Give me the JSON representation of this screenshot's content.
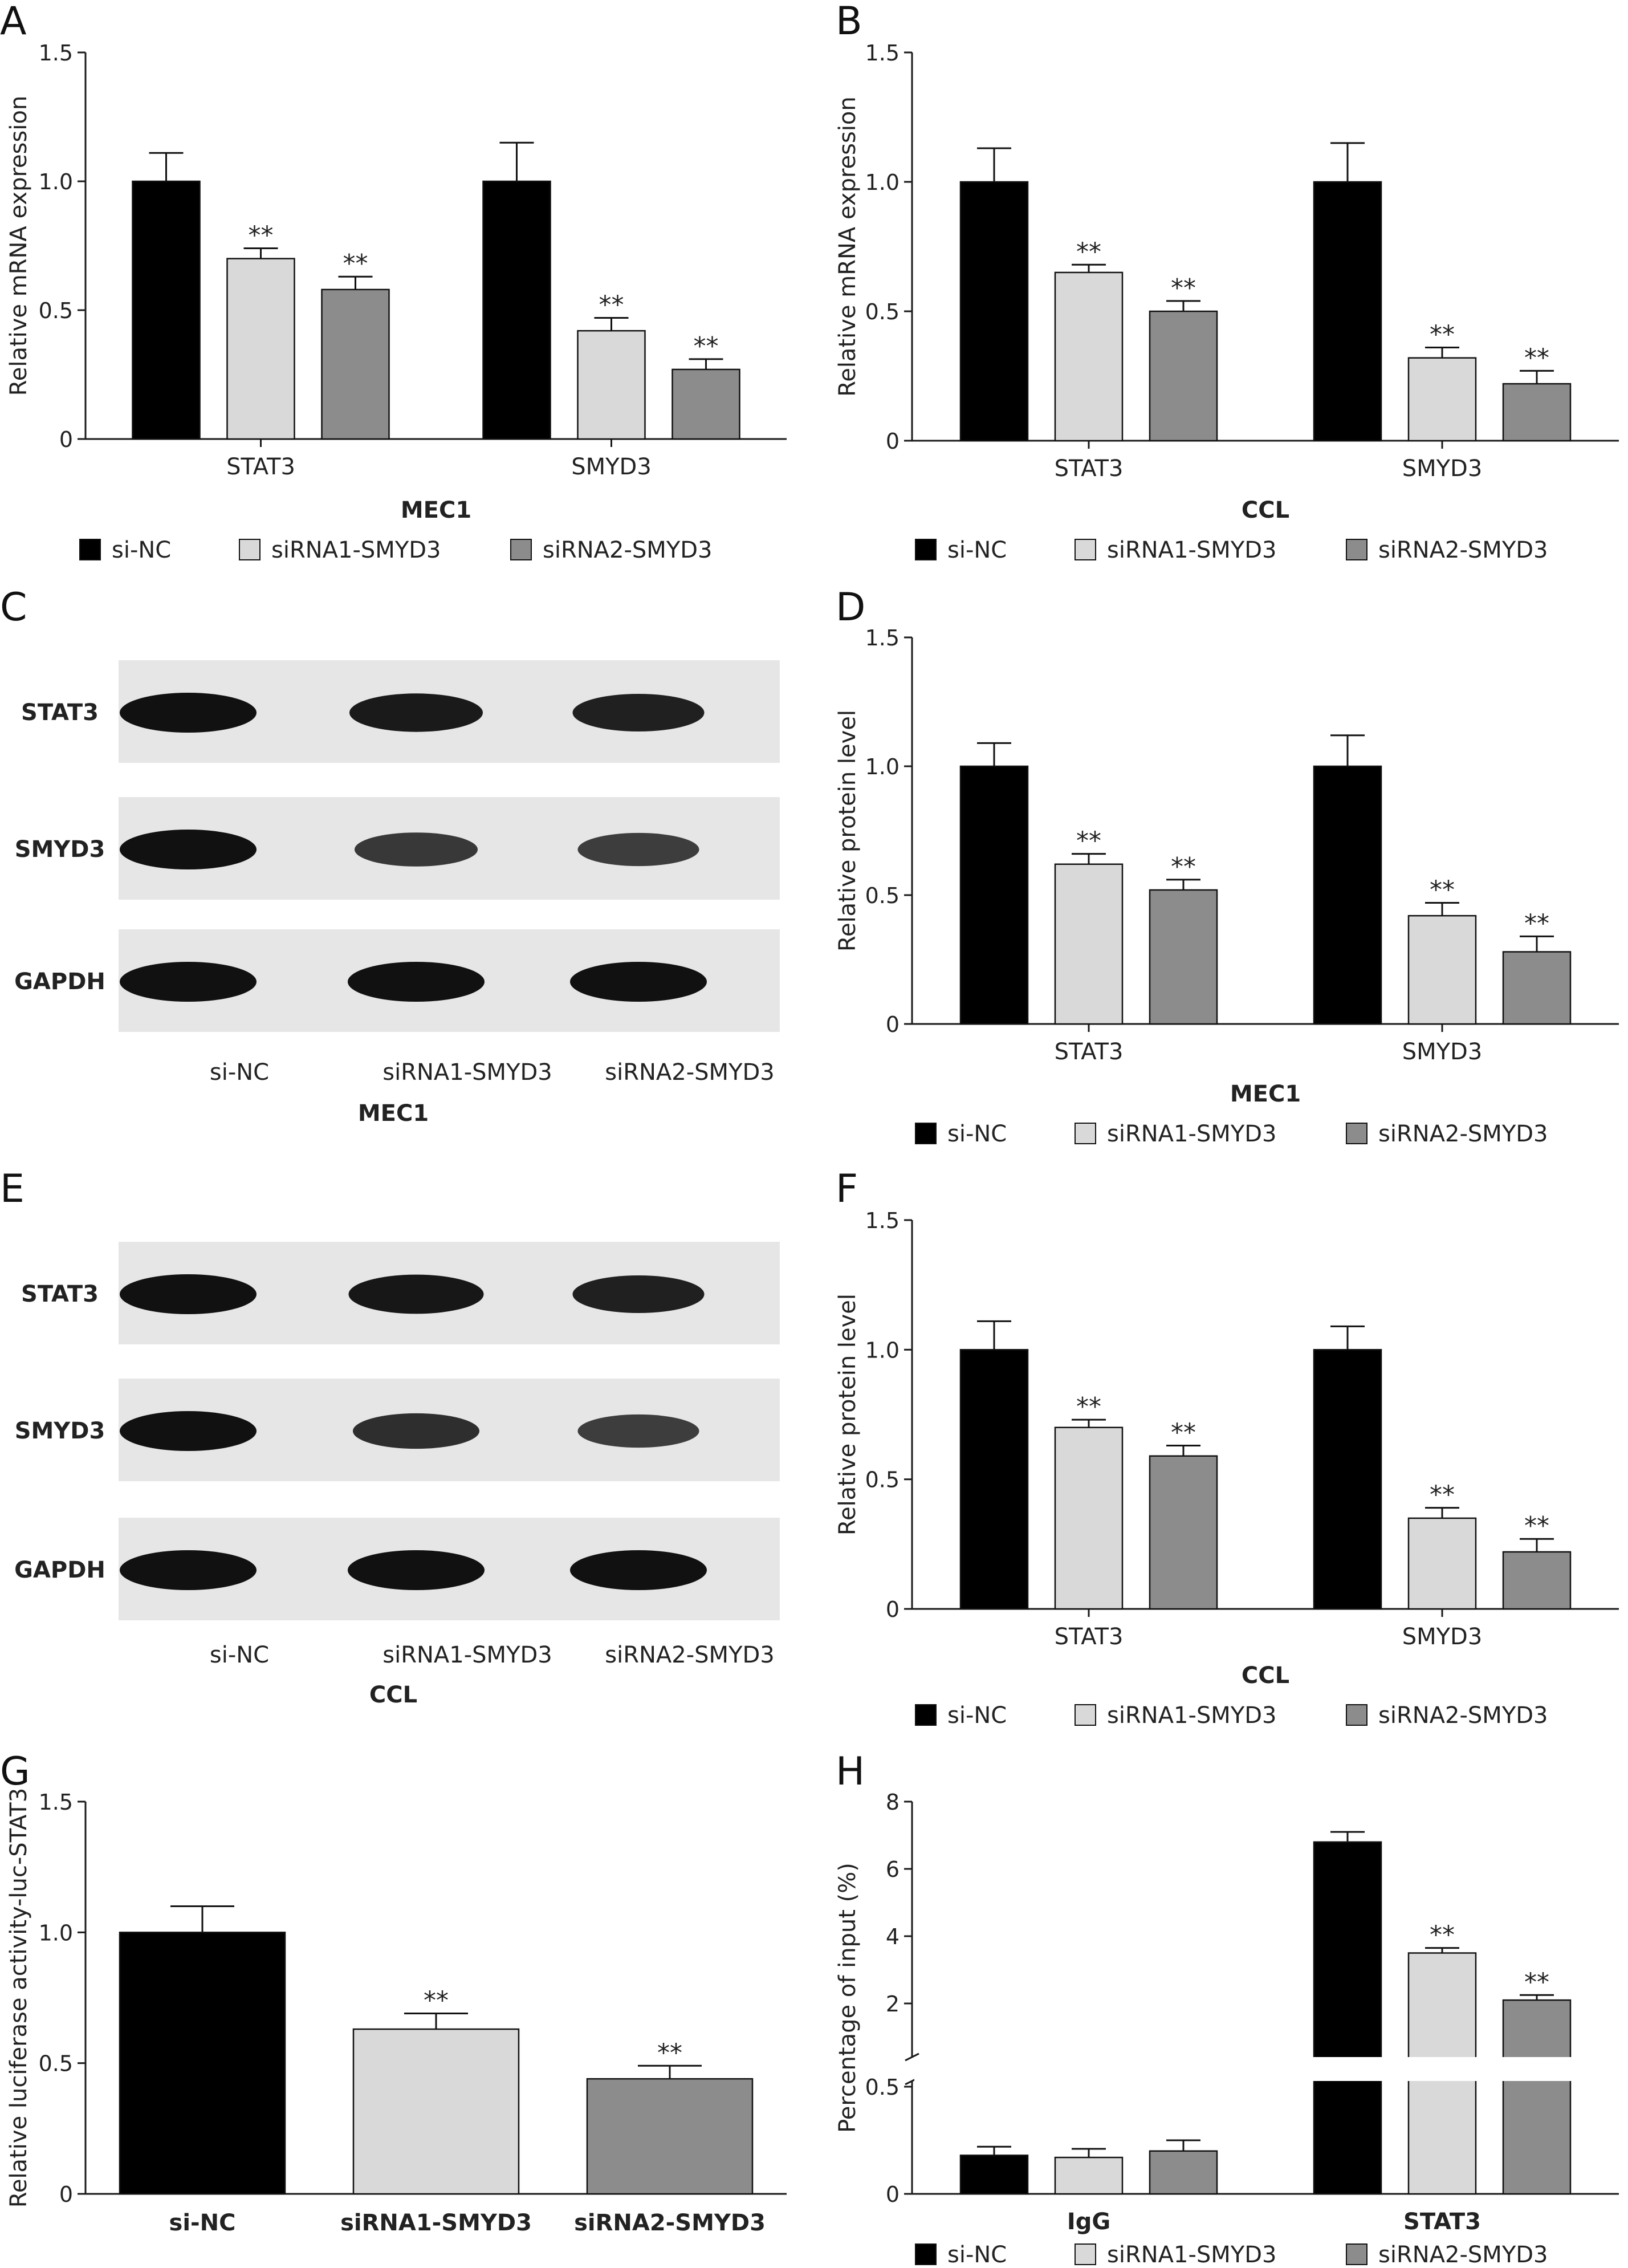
{
  "colors": {
    "si_nc": "#000000",
    "sirna1": "#d9d9d9",
    "sirna2": "#8c8c8c",
    "axis": "#1a1a1a",
    "star": "#000000"
  },
  "legend_labels": [
    "si-NC",
    "siRNA1-SMYD3",
    "siRNA2-SMYD3"
  ],
  "significance_marker": "**",
  "chart_data": [
    {
      "panel": "A",
      "type": "bar",
      "ylabel": "Relative mRNA expression",
      "xlabel": "MEC1",
      "categories": [
        "STAT3",
        "SMYD3"
      ],
      "ylim": [
        0,
        1.5
      ],
      "yticks": [
        0,
        0.5,
        1.0,
        1.5
      ],
      "ytick_labels": [
        "0",
        "0.5",
        "1.0",
        "1.5"
      ],
      "series": [
        {
          "name": "si-NC",
          "values": [
            1.0,
            1.0
          ],
          "errors": [
            0.11,
            0.15
          ],
          "sig": [
            false,
            false
          ]
        },
        {
          "name": "siRNA1-SMYD3",
          "values": [
            0.7,
            0.42
          ],
          "errors": [
            0.04,
            0.05
          ],
          "sig": [
            true,
            true
          ]
        },
        {
          "name": "siRNA2-SMYD3",
          "values": [
            0.58,
            0.27
          ],
          "errors": [
            0.05,
            0.04
          ],
          "sig": [
            true,
            true
          ]
        }
      ],
      "legend": [
        "si-NC",
        "siRNA1-SMYD3",
        "siRNA2-SMYD3"
      ]
    },
    {
      "panel": "B",
      "type": "bar",
      "ylabel": "Relative mRNA expression",
      "xlabel": "CCL",
      "categories": [
        "STAT3",
        "SMYD3"
      ],
      "ylim": [
        0,
        1.5
      ],
      "yticks": [
        0,
        0.5,
        1.0,
        1.5
      ],
      "ytick_labels": [
        "0",
        "0.5",
        "1.0",
        "1.5"
      ],
      "series": [
        {
          "name": "si-NC",
          "values": [
            1.0,
            1.0
          ],
          "errors": [
            0.13,
            0.15
          ],
          "sig": [
            false,
            false
          ]
        },
        {
          "name": "siRNA1-SMYD3",
          "values": [
            0.65,
            0.32
          ],
          "errors": [
            0.03,
            0.04
          ],
          "sig": [
            true,
            true
          ]
        },
        {
          "name": "siRNA2-SMYD3",
          "values": [
            0.5,
            0.22
          ],
          "errors": [
            0.04,
            0.05
          ],
          "sig": [
            true,
            true
          ]
        }
      ],
      "legend": [
        "si-NC",
        "siRNA1-SMYD3",
        "siRNA2-SMYD3"
      ]
    },
    {
      "panel": "D",
      "type": "bar",
      "ylabel": "Relative protein level",
      "xlabel": "MEC1",
      "categories": [
        "STAT3",
        "SMYD3"
      ],
      "ylim": [
        0,
        1.5
      ],
      "yticks": [
        0,
        0.5,
        1.0,
        1.5
      ],
      "ytick_labels": [
        "0",
        "0.5",
        "1.0",
        "1.5"
      ],
      "series": [
        {
          "name": "si-NC",
          "values": [
            1.0,
            1.0
          ],
          "errors": [
            0.09,
            0.12
          ],
          "sig": [
            false,
            false
          ]
        },
        {
          "name": "siRNA1-SMYD3",
          "values": [
            0.62,
            0.42
          ],
          "errors": [
            0.04,
            0.05
          ],
          "sig": [
            true,
            true
          ]
        },
        {
          "name": "siRNA2-SMYD3",
          "values": [
            0.52,
            0.28
          ],
          "errors": [
            0.04,
            0.06
          ],
          "sig": [
            true,
            true
          ]
        }
      ],
      "legend": [
        "si-NC",
        "siRNA1-SMYD3",
        "siRNA2-SMYD3"
      ]
    },
    {
      "panel": "F",
      "type": "bar",
      "ylabel": "Relative protein level",
      "xlabel": "CCL",
      "categories": [
        "STAT3",
        "SMYD3"
      ],
      "ylim": [
        0,
        1.5
      ],
      "yticks": [
        0,
        0.5,
        1.0,
        1.5
      ],
      "ytick_labels": [
        "0",
        "0.5",
        "1.0",
        "1.5"
      ],
      "series": [
        {
          "name": "si-NC",
          "values": [
            1.0,
            1.0
          ],
          "errors": [
            0.11,
            0.09
          ],
          "sig": [
            false,
            false
          ]
        },
        {
          "name": "siRNA1-SMYD3",
          "values": [
            0.7,
            0.35
          ],
          "errors": [
            0.03,
            0.04
          ],
          "sig": [
            true,
            true
          ]
        },
        {
          "name": "siRNA2-SMYD3",
          "values": [
            0.59,
            0.22
          ],
          "errors": [
            0.04,
            0.05
          ],
          "sig": [
            true,
            true
          ]
        }
      ],
      "legend": [
        "si-NC",
        "siRNA1-SMYD3",
        "siRNA2-SMYD3"
      ]
    },
    {
      "panel": "G",
      "type": "bar",
      "ylabel": "Relative luciferase activity-luc-STAT3",
      "xlabel": "",
      "categories": [
        "si-NC",
        "siRNA1-SMYD3",
        "siRNA2-SMYD3"
      ],
      "ylim": [
        0,
        1.5
      ],
      "yticks": [
        0,
        0.5,
        1.0,
        1.5
      ],
      "ytick_labels": [
        "0",
        "0.5",
        "1.0",
        "1.5"
      ],
      "values": [
        1.0,
        0.63,
        0.44
      ],
      "errors": [
        0.1,
        0.06,
        0.05
      ],
      "sig": [
        false,
        true,
        true
      ]
    },
    {
      "panel": "H",
      "type": "bar",
      "ylabel": "Percentage of input (%)",
      "xlabel": "",
      "categories": [
        "IgG",
        "STAT3"
      ],
      "y_axis_break": [
        0.5,
        2
      ],
      "ylim_lower": [
        0,
        0.5
      ],
      "ylim_upper": [
        2,
        8
      ],
      "yticks_lower": [
        0,
        0.5
      ],
      "yticks_upper": [
        2,
        4,
        6,
        8
      ],
      "ytick_labels_lower": [
        "0",
        "0.5"
      ],
      "ytick_labels_upper": [
        "2",
        "4",
        "6",
        "8"
      ],
      "series": [
        {
          "name": "si-NC",
          "values": [
            0.18,
            6.8
          ],
          "errors": [
            0.04,
            0.3
          ],
          "sig": [
            false,
            false
          ]
        },
        {
          "name": "siRNA1-SMYD3",
          "values": [
            0.17,
            3.5
          ],
          "errors": [
            0.04,
            0.15
          ],
          "sig": [
            false,
            true
          ]
        },
        {
          "name": "siRNA2-SMYD3",
          "values": [
            0.2,
            2.1
          ],
          "errors": [
            0.05,
            0.15
          ],
          "sig": [
            false,
            true
          ]
        }
      ],
      "legend": [
        "si-NC",
        "siRNA1-SMYD3",
        "siRNA2-SMYD3"
      ]
    }
  ],
  "blots": [
    {
      "panel": "C",
      "rows": [
        "STAT3",
        "SMYD3",
        "GAPDH"
      ],
      "lanes": [
        "si-NC",
        "siRNA1-SMYD3",
        "siRNA2-SMYD3"
      ],
      "caption": "MEC1",
      "intensity": [
        [
          1.0,
          0.9,
          0.85
        ],
        [
          1.0,
          0.6,
          0.55
        ],
        [
          1.0,
          1.0,
          1.0
        ]
      ]
    },
    {
      "panel": "E",
      "rows": [
        "STAT3",
        "SMYD3",
        "GAPDH"
      ],
      "lanes": [
        "si-NC",
        "siRNA1-SMYD3",
        "siRNA2-SMYD3"
      ],
      "caption": "CCL",
      "intensity": [
        [
          1.0,
          0.95,
          0.85
        ],
        [
          1.0,
          0.7,
          0.55
        ],
        [
          1.0,
          1.0,
          1.0
        ]
      ]
    }
  ]
}
